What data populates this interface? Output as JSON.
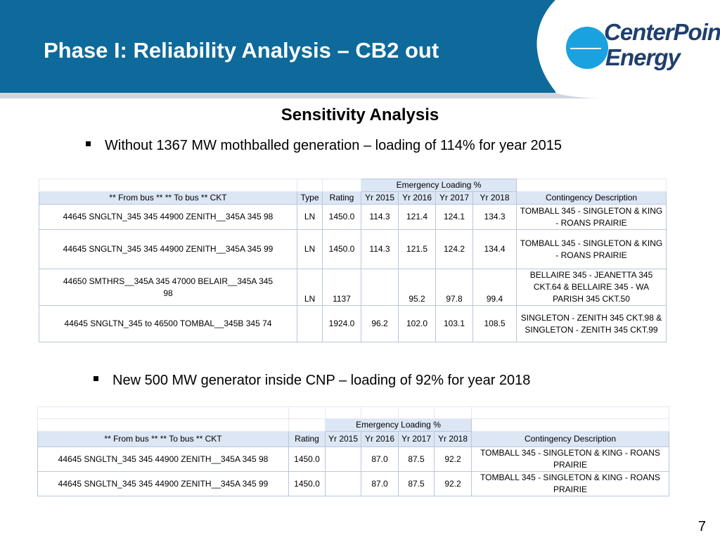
{
  "slide": {
    "title": "Phase I: Reliability Analysis – CB2 out",
    "page_number": "7",
    "brand_color": "#0e6a9a",
    "logo": {
      "line1": "CenterPoint.",
      "line2": "Energy"
    }
  },
  "section_title": "Sensitivity Analysis",
  "bullets": [
    "Without 1367 MW mothballed  generation – loading of 114% for year 2015",
    "New 500 MW generator inside CNP – loading of 92% for year 2018"
  ],
  "table1": {
    "group_header": "Emergency Loading %",
    "headers": [
      "**    From bus    ** **     To bus    ** CKT",
      "Type",
      "Rating",
      "Yr 2015",
      "Yr 2016",
      "Yr 2017",
      "Yr 2018",
      "Contingency Description"
    ],
    "rows": [
      [
        "44645 SNGLTN_345   345  44900 ZENITH__345A 345 98",
        "LN",
        "1450.0",
        "114.3",
        "121.4",
        "124.1",
        "134.3",
        "TOMBALL 345 - SINGLETON & KING - ROANS PRAIRIE"
      ],
      [
        "44645 SNGLTN_345   345  44900 ZENITH__345A 345 99",
        "LN",
        "1450.0",
        "114.3",
        "121.5",
        "124.2",
        "134.4",
        "TOMBALL 345 - SINGLETON & KING - ROANS PRAIRIE"
      ],
      [
        "44650 SMTHRS__345A 345  47000 BELAIR__345A 345 98",
        "LN",
        "1137",
        "",
        "95.2",
        "97.8",
        "99.4",
        "BELLAIRE 345 - JEANETTA 345 CKT.64 & BELLAIRE 345 - WA PARISH 345 CKT.50"
      ],
      [
        "44645 SNGLTN_345   to  46500 TOMBAL__345B 345 74",
        "",
        "1924.0",
        "96.2",
        "102.0",
        "103.1",
        "108.5",
        "SINGLETON - ZENITH 345 CKT.98 & SINGLETON - ZENITH 345 CKT.99"
      ]
    ]
  },
  "table2": {
    "group_header": "Emergency Loading %",
    "headers": [
      "**    From bus    ** **     To bus    ** CKT",
      "Rating",
      "Yr 2015",
      "Yr 2016",
      "Yr 2017",
      "Yr 2018",
      "Contingency Description"
    ],
    "rows": [
      [
        "44645 SNGLTN_345   345  44900 ZENITH__345A 345 98",
        "1450.0",
        "",
        "87.0",
        "87.5",
        "92.2",
        "TOMBALL 345 - SINGLETON & KING - ROANS PRAIRIE"
      ],
      [
        "44645 SNGLTN_345   345  44900 ZENITH__345A 345 99",
        "1450.0",
        "",
        "87.0",
        "87.5",
        "92.2",
        "TOMBALL 345 - SINGLETON & KING - ROANS PRAIRIE"
      ]
    ]
  }
}
